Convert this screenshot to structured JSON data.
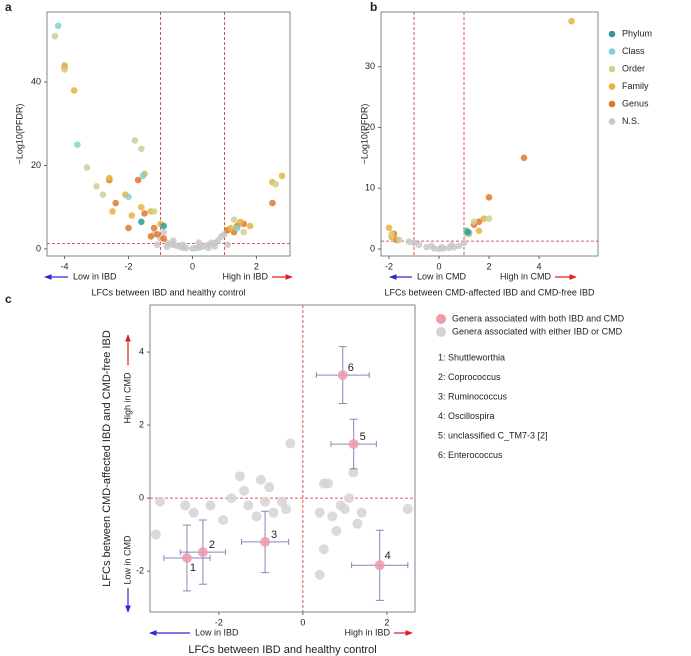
{
  "chart_data": [
    {
      "type": "scatter",
      "panel_label": "a",
      "x_label": "LFCs between IBD and healthy control",
      "y_label": "−Log10(PFDR)",
      "annotations": [
        "Low in IBD",
        "High in IBD"
      ],
      "xlim": [
        -4.55,
        3.05
      ],
      "ylim": [
        -1.7,
        56.8
      ],
      "xticks": [
        -4,
        -2,
        0,
        2
      ],
      "yticks": [
        0,
        20,
        40
      ],
      "vlines": [
        -1,
        1
      ],
      "hlines": [
        1.3
      ],
      "ref_color": "#d62728",
      "series": [
        {
          "color": "#2f9b97",
          "x": [
            -1.6,
            -0.9
          ],
          "y": [
            6.5,
            5.5
          ]
        },
        {
          "color": "#80d3d0",
          "x": [
            -4.2,
            -3.6,
            -1.55,
            -2.0,
            1.4
          ],
          "y": [
            53.5,
            25,
            17.5,
            12.5,
            5
          ]
        },
        {
          "color": "#cfd08f",
          "x": [
            -4.3,
            -4.0,
            -3.3,
            -2.8,
            -1.8,
            -1.6,
            -1.2,
            2.6,
            1.3,
            1.6,
            -3.0
          ],
          "y": [
            51,
            43,
            19.5,
            13,
            26,
            24,
            9,
            15.5,
            7,
            4,
            15
          ]
        },
        {
          "color": "#e5b43c",
          "x": [
            -4.0,
            -3.7,
            -2.6,
            -2.1,
            -1.5,
            -1.6,
            -1.9,
            -1.0,
            1.2,
            1.5,
            1.8,
            2.5,
            2.8,
            -2.5,
            -1.3
          ],
          "y": [
            44,
            38,
            17,
            13,
            18,
            10,
            8,
            6,
            5,
            6.5,
            5.5,
            16,
            17.5,
            9,
            9
          ]
        },
        {
          "color": "#e0782a",
          "x": [
            -4.0,
            -2.6,
            -2.4,
            -1.7,
            -1.5,
            -1.2,
            -1.1,
            -0.9,
            1.1,
            1.3,
            1.4,
            1.6,
            2.5,
            -2.0,
            -1.3
          ],
          "y": [
            43.5,
            16.5,
            11,
            16.5,
            8.5,
            5,
            3.5,
            2.5,
            4.5,
            4,
            5.5,
            6,
            11,
            5,
            3
          ]
        },
        {
          "color": "#c8c8c8",
          "x": [
            -1.2,
            -1.0,
            -0.9,
            -0.8,
            -0.7,
            -0.6,
            -0.5,
            -0.4,
            -0.3,
            -0.2,
            0,
            0.1,
            0.2,
            0.3,
            0.4,
            0.5,
            0.6,
            0.7,
            0.8,
            0.9,
            1.0,
            -0.8,
            0.5,
            -0.3,
            0.2,
            -1.1,
            1.1,
            -0.6,
            0.7
          ],
          "y": [
            3.5,
            2.5,
            4,
            1.5,
            1.2,
            1,
            0.8,
            0.5,
            0.3,
            0.2,
            0.1,
            0.2,
            0.3,
            0.5,
            0.7,
            1,
            1.5,
            1.4,
            2,
            3,
            3.5,
            0.5,
            0.2,
            1,
            1.5,
            1,
            1,
            2,
            0.6
          ]
        }
      ]
    },
    {
      "type": "scatter",
      "panel_label": "b",
      "x_label": "LFCs between CMD-affected IBD and CMD-free IBD",
      "y_label": "−Log10(PFDR)",
      "annotations": [
        "Low in CMD",
        "High in CMD"
      ],
      "xlim": [
        -2.32,
        6.36
      ],
      "ylim": [
        -1.15,
        39
      ],
      "xticks": [
        -2,
        0,
        2,
        4
      ],
      "yticks": [
        0,
        10,
        20,
        30
      ],
      "vlines": [
        -1,
        1
      ],
      "hlines": [
        1.3
      ],
      "ref_color": "#d62728",
      "legend": "outside-right",
      "series": [
        {
          "name": "Phylum",
          "color": "#2f9b97",
          "x": [
            1.15
          ],
          "y": [
            2.8
          ]
        },
        {
          "name": "Class",
          "color": "#80d3d0",
          "x": [
            1.1,
            1.2
          ],
          "y": [
            3,
            2.7
          ]
        },
        {
          "name": "Order",
          "color": "#cfd08f",
          "x": [
            2.0,
            1.4,
            1.1,
            -1.9,
            -1.6
          ],
          "y": [
            5,
            4.5,
            2.5,
            2.5,
            1.5
          ]
        },
        {
          "name": "Family",
          "color": "#e5b43c",
          "x": [
            5.3,
            1.8,
            1.2,
            1.6,
            -1.9,
            -2.0
          ],
          "y": [
            37.5,
            5,
            2.5,
            3,
            2,
            3.5
          ]
        },
        {
          "name": "Genus",
          "color": "#e0782a",
          "x": [
            3.4,
            2.0,
            1.4,
            1.6,
            -1.8,
            -1.7,
            1.1
          ],
          "y": [
            15,
            8.5,
            4,
            4.5,
            2.5,
            1.5,
            3
          ]
        },
        {
          "name": "N.S.",
          "color": "#c8c8c8",
          "x": [
            -1.0,
            -0.8,
            -0.5,
            -0.2,
            0,
            0.2,
            0.4,
            0.6,
            0.8,
            1.0,
            -0.3,
            0.1,
            -1.2,
            0.5
          ],
          "y": [
            1,
            0.7,
            0.3,
            0.1,
            0,
            0.1,
            0.2,
            0.3,
            0.5,
            1,
            0.5,
            0.3,
            1.2,
            0.6
          ]
        }
      ]
    },
    {
      "type": "scatter",
      "panel_label": "c",
      "x_label": "LFCs between IBD and healthy control",
      "y_label": "LFCs between CMD-affected IBD and CMD-free IBD",
      "annotations": [
        "High in CMD",
        "Low in CMD",
        "Low in IBD",
        "High in IBD"
      ],
      "xlim": [
        -3.64,
        2.67
      ],
      "ylim": [
        -3.12,
        5.29
      ],
      "xticks": [
        -2,
        0,
        2
      ],
      "yticks": [
        -2,
        0,
        2,
        4
      ],
      "vlines": [
        0
      ],
      "hlines": [
        0
      ],
      "ref_color": "#d62728",
      "legend": "outside-right",
      "series": [
        {
          "name": "Genera associated with both IBD and CMD",
          "color": "#f09aaa",
          "x": [
            -2.76,
            -2.38,
            -0.9,
            1.83,
            1.21,
            0.95
          ],
          "y": [
            -1.64,
            -1.48,
            -1.2,
            -1.84,
            1.48,
            3.37
          ],
          "xerr": [
            0.55,
            0.54,
            0.56,
            0.67,
            0.54,
            0.63
          ],
          "yerr": [
            0.9,
            0.88,
            0.84,
            0.96,
            0.68,
            0.78
          ],
          "point_labels": [
            "1",
            "2",
            "3",
            "4",
            "5",
            "6"
          ]
        },
        {
          "name": "Genera associated with either IBD or CMD",
          "color": "#d3d3d3",
          "x": [
            -3.5,
            -2.8,
            -2.2,
            -2.6,
            -1.9,
            -1.7,
            -1.5,
            -1.4,
            -1.3,
            -1.1,
            -1.0,
            -0.9,
            -0.8,
            -0.7,
            -0.5,
            -0.4,
            -0.3,
            0.5,
            0.6,
            0.4,
            0.7,
            0.8,
            1.0,
            1.1,
            1.2,
            1.4,
            1.3,
            0.5,
            0.4,
            0.9,
            2.5,
            -3.4
          ],
          "y": [
            -1.0,
            -0.2,
            -0.2,
            -0.4,
            -0.6,
            0.0,
            0.6,
            0.2,
            -0.2,
            -0.5,
            0.5,
            -0.1,
            0.3,
            -0.4,
            -0.1,
            -0.3,
            1.5,
            0.4,
            0.4,
            -0.4,
            -0.5,
            -0.9,
            -0.3,
            0.0,
            0.7,
            -0.4,
            -0.7,
            -1.4,
            -2.1,
            -0.2,
            -0.3,
            -0.1
          ]
        }
      ],
      "genus_list": [
        "1: Shuttleworthia",
        "2: Coprococcus",
        "3: Ruminococcus",
        "4: Oscillospira",
        "5: unclassified C_TM7-3 [2]",
        "6: Enterococcus"
      ]
    }
  ]
}
